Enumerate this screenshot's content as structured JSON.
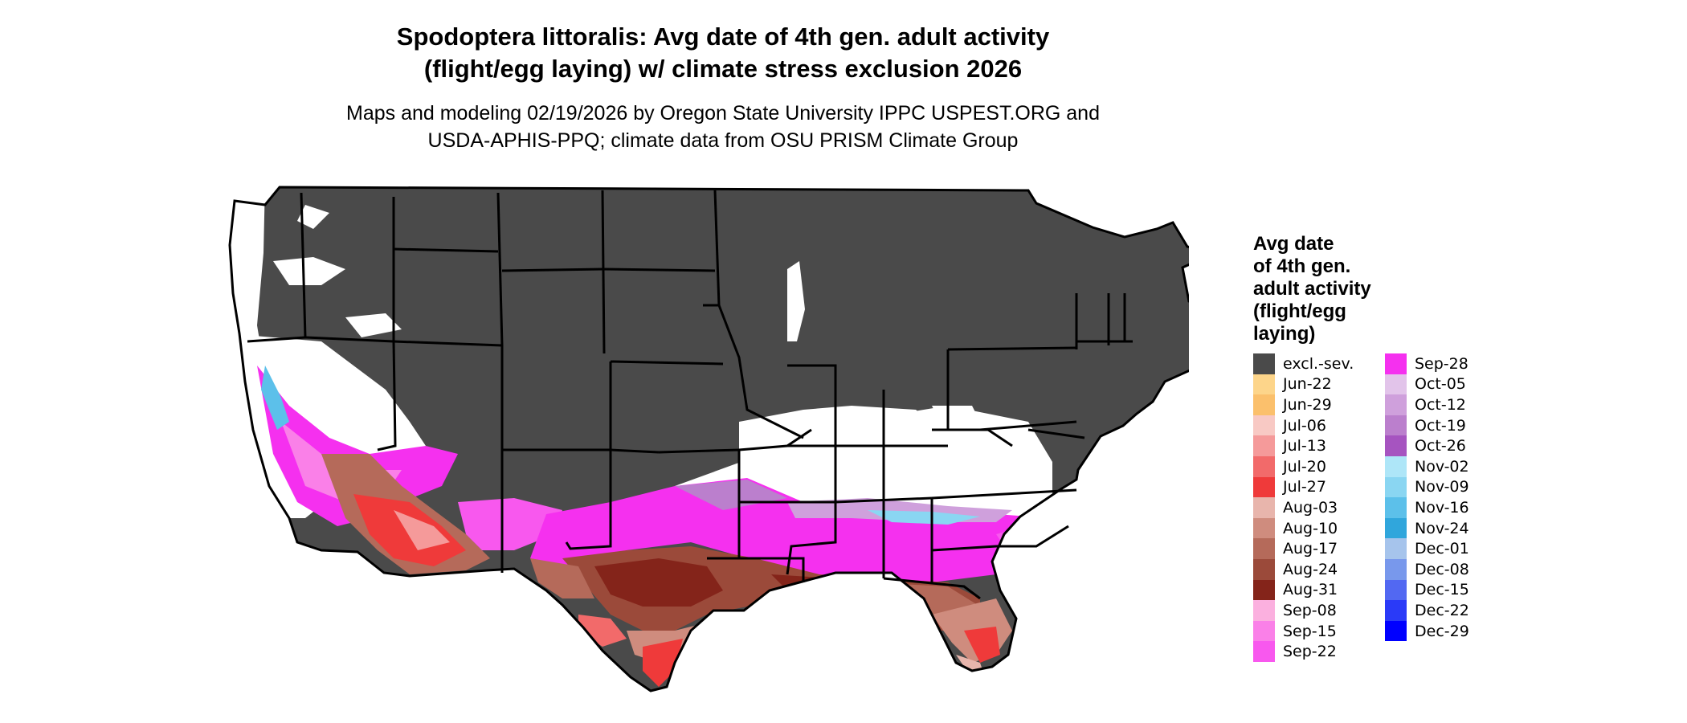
{
  "title": {
    "line1": "Spodoptera littoralis: Avg date of 4th gen. adult activity",
    "line2": "(flight/egg laying) w/ climate stress exclusion 2026"
  },
  "subtitle": {
    "line1": "Maps and modeling 02/19/2026 by Oregon State University IPPC USPEST.ORG and",
    "line2": "USDA-APHIS-PPQ; climate data from OSU PRISM Climate Group"
  },
  "legend": {
    "title_lines": [
      "Avg date",
      "of 4th gen.",
      "adult activity",
      "(flight/egg",
      "laying)"
    ],
    "items": [
      {
        "label": "excl.-sev.",
        "color": "#4a4a4a"
      },
      {
        "label": "Jun-22",
        "color": "#fdd58a"
      },
      {
        "label": "Jun-29",
        "color": "#fbc06c"
      },
      {
        "label": "Jul-06",
        "color": "#f8c9c4"
      },
      {
        "label": "Jul-13",
        "color": "#f59a9a"
      },
      {
        "label": "Jul-20",
        "color": "#f26a6a"
      },
      {
        "label": "Jul-27",
        "color": "#ef3a3a"
      },
      {
        "label": "Aug-03",
        "color": "#e8b5ac"
      },
      {
        "label": "Aug-10",
        "color": "#cf8c7e"
      },
      {
        "label": "Aug-17",
        "color": "#b56a5a"
      },
      {
        "label": "Aug-24",
        "color": "#9b4a3a"
      },
      {
        "label": "Aug-31",
        "color": "#84241a"
      },
      {
        "label": "Sep-08",
        "color": "#fbb0df"
      },
      {
        "label": "Sep-15",
        "color": "#fa80e8"
      },
      {
        "label": "Sep-22",
        "color": "#f858ee"
      },
      {
        "label": "Sep-28",
        "color": "#f530ef"
      },
      {
        "label": "Oct-05",
        "color": "#e2c4ea"
      },
      {
        "label": "Oct-12",
        "color": "#cfa0dc"
      },
      {
        "label": "Oct-19",
        "color": "#bb7fcd"
      },
      {
        "label": "Oct-26",
        "color": "#a654c0"
      },
      {
        "label": "Nov-02",
        "color": "#aee6f8"
      },
      {
        "label": "Nov-09",
        "color": "#8ad6f2"
      },
      {
        "label": "Nov-16",
        "color": "#5cc0ea"
      },
      {
        "label": "Nov-24",
        "color": "#30a6dc"
      },
      {
        "label": "Dec-01",
        "color": "#a6c4ec"
      },
      {
        "label": "Dec-08",
        "color": "#7898ec"
      },
      {
        "label": "Dec-15",
        "color": "#5268f2"
      },
      {
        "label": "Dec-22",
        "color": "#2a3af8"
      },
      {
        "label": "Dec-29",
        "color": "#0000ff"
      }
    ]
  }
}
